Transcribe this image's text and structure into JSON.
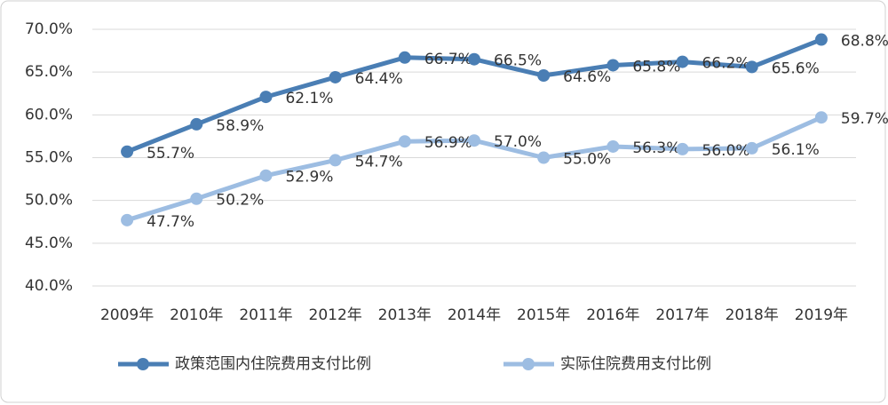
{
  "chart_data": {
    "type": "line",
    "categories": [
      "2009年",
      "2010年",
      "2011年",
      "2012年",
      "2013年",
      "2014年",
      "2015年",
      "2016年",
      "2017年",
      "2018年",
      "2019年"
    ],
    "series": [
      {
        "name": "政策范围内住院费用支付比例",
        "color": "#4a7eb4",
        "values": [
          55.7,
          58.9,
          62.1,
          64.4,
          66.7,
          66.5,
          64.6,
          65.8,
          66.2,
          65.6,
          68.8
        ],
        "value_labels": [
          "55.7%",
          "58.9%",
          "62.1%",
          "64.4%",
          "66.7%",
          "66.5%",
          "64.6%",
          "65.8%",
          "66.2%",
          "65.6%",
          "68.8%"
        ]
      },
      {
        "name": "实际住院费用支付比例",
        "color": "#9dbde2",
        "values": [
          47.7,
          50.2,
          52.9,
          54.7,
          56.9,
          57.0,
          55.0,
          56.3,
          56.0,
          56.1,
          59.7
        ],
        "value_labels": [
          "47.7%",
          "50.2%",
          "52.9%",
          "54.7%",
          "56.9%",
          "57.0%",
          "55.0%",
          "56.3%",
          "56.0%",
          "56.1%",
          "59.7%"
        ]
      }
    ],
    "ylim": [
      40,
      70
    ],
    "yticks": [
      {
        "value": 40,
        "label": "40.0%"
      },
      {
        "value": 45,
        "label": "45.0%"
      },
      {
        "value": 50,
        "label": "50.0%"
      },
      {
        "value": 55,
        "label": "55.0%"
      },
      {
        "value": 60,
        "label": "60.0%"
      },
      {
        "value": 65,
        "label": "65.0%"
      },
      {
        "value": 70,
        "label": "70.0%"
      }
    ],
    "grid": true,
    "legend": "bottom"
  }
}
